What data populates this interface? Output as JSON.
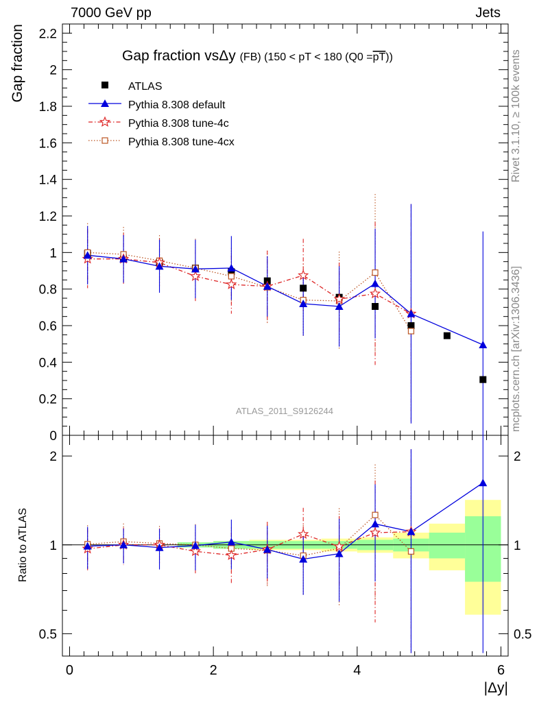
{
  "header": {
    "left": "7000 GeV pp",
    "right": "Jets"
  },
  "side_labels": {
    "rivet": "Rivet 3.1.10, ≥ 100k events",
    "mcplots": "mcplots.cern.ch [arXiv:1306.3436]"
  },
  "watermark": "ATLAS_2011_S9126244",
  "chart_data": {
    "type": "scatter",
    "title": "Gap fraction vsΔy (FB) (150 < pT < 180 (Q0 =pT))",
    "title_parts": {
      "main": "Gap fraction vsΔy",
      "small_left": "(FB) (150 < pT < 180 (Q0 =",
      "overline": "pT",
      "small_right": "))"
    },
    "xlabel": "|Δy|",
    "ylabel": "Gap fraction",
    "ratio_ylabel": "Ratio to ATLAS",
    "xlim": [
      -0.1,
      6.1
    ],
    "ylim": [
      0,
      2.25
    ],
    "ratio_ylim": [
      0.42,
      2.35
    ],
    "ratio_scale": "log",
    "x_ticks": [
      "0",
      "2",
      "4",
      "6"
    ],
    "y_ticks": [
      "0",
      "0.2",
      "0.4",
      "0.6",
      "0.8",
      "1",
      "1.2",
      "1.4",
      "1.6",
      "1.8",
      "2",
      "2.2"
    ],
    "ratio_ticks": [
      "0.5",
      "1",
      "2"
    ],
    "legend_position": "top-left",
    "x": [
      0.25,
      0.75,
      1.25,
      1.75,
      2.25,
      2.75,
      3.25,
      3.75,
      4.25,
      4.75,
      5.25,
      5.75
    ],
    "bin_edges": [
      0,
      0.5,
      1,
      1.5,
      2,
      2.5,
      3,
      3.5,
      4,
      4.5,
      5,
      5.5,
      6
    ],
    "band_inner": [
      0.0,
      0.0,
      0.0,
      0.02,
      0.03,
      0.03,
      0.03,
      0.03,
      0.04,
      0.05,
      0.1,
      0.25
    ],
    "band_outer": [
      0.0,
      0.0,
      0.0,
      0.02,
      0.03,
      0.04,
      0.04,
      0.05,
      0.06,
      0.1,
      0.18,
      0.42
    ],
    "series": [
      {
        "name": "ATLAS",
        "color": "#000000",
        "marker": "square",
        "line": "none",
        "values": [
          0.995,
          0.965,
          0.945,
          0.915,
          0.895,
          0.845,
          0.805,
          0.755,
          0.705,
          0.6,
          0.545,
          0.305
        ],
        "errors": [
          0,
          0,
          0,
          0,
          0,
          0,
          0,
          0,
          0,
          0,
          0,
          0
        ]
      },
      {
        "name": "Pythia 8.308 default",
        "color": "#0000dd",
        "marker": "triangle",
        "line": "solid",
        "values": [
          0.985,
          0.965,
          0.925,
          0.91,
          0.915,
          0.815,
          0.72,
          0.705,
          0.83,
          0.665,
          null,
          0.495
        ],
        "errors": [
          0.16,
          0.13,
          0.145,
          0.16,
          0.175,
          0.165,
          0.175,
          0.22,
          0.3,
          0.6,
          null,
          0.62
        ]
      },
      {
        "name": "Pythia 8.308 tune-4c",
        "color": "#dd2222",
        "marker": "star",
        "line": "dashdot",
        "values": [
          0.965,
          0.965,
          0.945,
          0.87,
          0.825,
          0.815,
          0.875,
          0.745,
          0.775,
          0.665,
          null,
          null
        ],
        "errors": [
          0.16,
          0.14,
          0.13,
          0.14,
          0.16,
          0.195,
          0.2,
          0.2,
          0.39,
          0.6,
          null,
          null
        ]
      },
      {
        "name": "Pythia 8.308 tune-4cx",
        "color": "#bb5522",
        "marker": "opensquare",
        "line": "dotted",
        "values": [
          1.0,
          0.99,
          0.955,
          0.915,
          0.87,
          0.81,
          0.74,
          0.735,
          0.89,
          0.57,
          null,
          null
        ],
        "errors": [
          0.16,
          0.15,
          0.14,
          0.16,
          0.155,
          0.2,
          0.2,
          0.27,
          0.43,
          0.5,
          null,
          null
        ]
      }
    ]
  }
}
